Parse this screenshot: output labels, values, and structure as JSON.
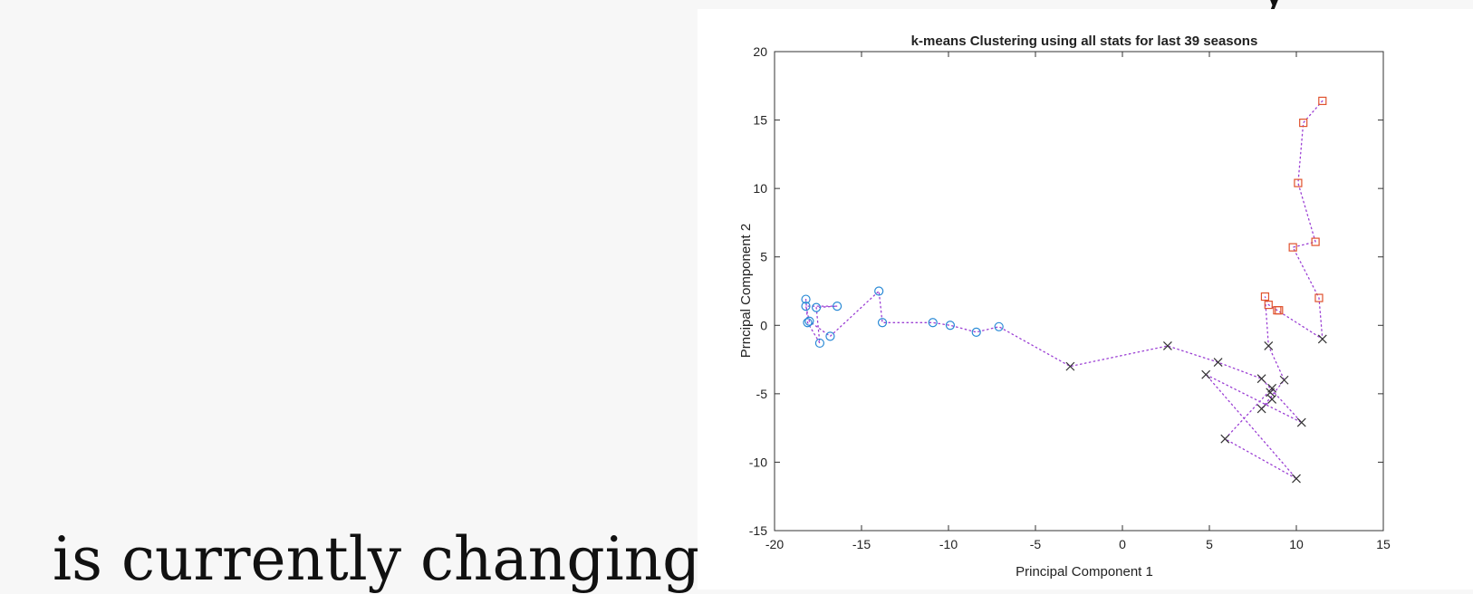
{
  "page": {
    "caption_text": "is currently changing",
    "top_fragment_text": "y"
  },
  "chart_data": {
    "type": "scatter",
    "title": "k-means Clustering using all stats for last 39 seasons",
    "xlabel": "Principal Component 1",
    "ylabel": "Prncipal Component 2",
    "xlim": [
      -20,
      15
    ],
    "ylim": [
      -15,
      20
    ],
    "xticks": [
      -20,
      -15,
      -10,
      -5,
      0,
      5,
      10,
      15
    ],
    "yticks": [
      -15,
      -10,
      -5,
      0,
      5,
      10,
      15,
      20
    ],
    "grid": false,
    "path_color": "#9b3fd4",
    "series": [
      {
        "marker": "circle",
        "color": "#2a8ad6",
        "points": [
          [
            -18.2,
            1.9
          ],
          [
            -18.2,
            1.4
          ],
          [
            -18.1,
            0.2
          ],
          [
            -18.0,
            0.3
          ],
          [
            -17.6,
            1.3
          ],
          [
            -17.4,
            -1.3
          ],
          [
            -16.8,
            -0.8
          ],
          [
            -16.4,
            1.4
          ],
          [
            -14.0,
            2.5
          ],
          [
            -13.8,
            0.2
          ],
          [
            -10.9,
            0.2
          ],
          [
            -9.9,
            0.0
          ],
          [
            -8.4,
            -0.5
          ],
          [
            -7.1,
            -0.1
          ]
        ]
      },
      {
        "marker": "x",
        "color": "#333333",
        "points": [
          [
            -3.0,
            -3.0
          ],
          [
            2.6,
            -1.5
          ],
          [
            4.8,
            -3.6
          ],
          [
            5.5,
            -2.7
          ],
          [
            5.9,
            -8.3
          ],
          [
            8.0,
            -3.9
          ],
          [
            8.0,
            -6.1
          ],
          [
            8.4,
            -1.5
          ],
          [
            8.5,
            -4.9
          ],
          [
            8.6,
            -4.6
          ],
          [
            8.6,
            -5.4
          ],
          [
            9.3,
            -4.0
          ],
          [
            10.0,
            -11.2
          ],
          [
            10.3,
            -7.1
          ],
          [
            11.5,
            -1.0
          ]
        ]
      },
      {
        "marker": "square",
        "color": "#e0522e",
        "points": [
          [
            8.2,
            2.1
          ],
          [
            8.4,
            1.5
          ],
          [
            8.9,
            1.1
          ],
          [
            9.0,
            1.1
          ],
          [
            9.8,
            5.7
          ],
          [
            10.1,
            10.4
          ],
          [
            10.4,
            14.8
          ],
          [
            11.1,
            6.1
          ],
          [
            11.3,
            2.0
          ],
          [
            11.5,
            16.4
          ]
        ]
      }
    ],
    "path": [
      [
        -18.2,
        1.9
      ],
      [
        -18.1,
        0.2
      ],
      [
        -17.4,
        -1.3
      ],
      [
        -17.6,
        1.3
      ],
      [
        -16.4,
        1.4
      ],
      [
        -18.2,
        1.4
      ],
      [
        -18.0,
        0.3
      ],
      [
        -16.8,
        -0.8
      ],
      [
        -14.0,
        2.5
      ],
      [
        -13.8,
        0.2
      ],
      [
        -10.9,
        0.2
      ],
      [
        -9.9,
        0.0
      ],
      [
        -8.4,
        -0.5
      ],
      [
        -7.1,
        -0.1
      ],
      [
        -3.0,
        -3.0
      ],
      [
        2.6,
        -1.5
      ],
      [
        5.5,
        -2.7
      ],
      [
        8.0,
        -3.9
      ],
      [
        10.3,
        -7.1
      ],
      [
        4.8,
        -3.6
      ],
      [
        10.0,
        -11.2
      ],
      [
        5.9,
        -8.3
      ],
      [
        8.6,
        -4.6
      ],
      [
        8.5,
        -4.9
      ],
      [
        8.6,
        -5.4
      ],
      [
        8.0,
        -6.1
      ],
      [
        9.3,
        -4.0
      ],
      [
        8.4,
        -1.5
      ],
      [
        8.2,
        2.1
      ],
      [
        8.4,
        1.5
      ],
      [
        8.9,
        1.1
      ],
      [
        11.5,
        -1.0
      ],
      [
        11.3,
        2.0
      ],
      [
        9.8,
        5.7
      ],
      [
        11.1,
        6.1
      ],
      [
        10.1,
        10.4
      ],
      [
        10.4,
        14.8
      ],
      [
        11.5,
        16.4
      ]
    ]
  }
}
